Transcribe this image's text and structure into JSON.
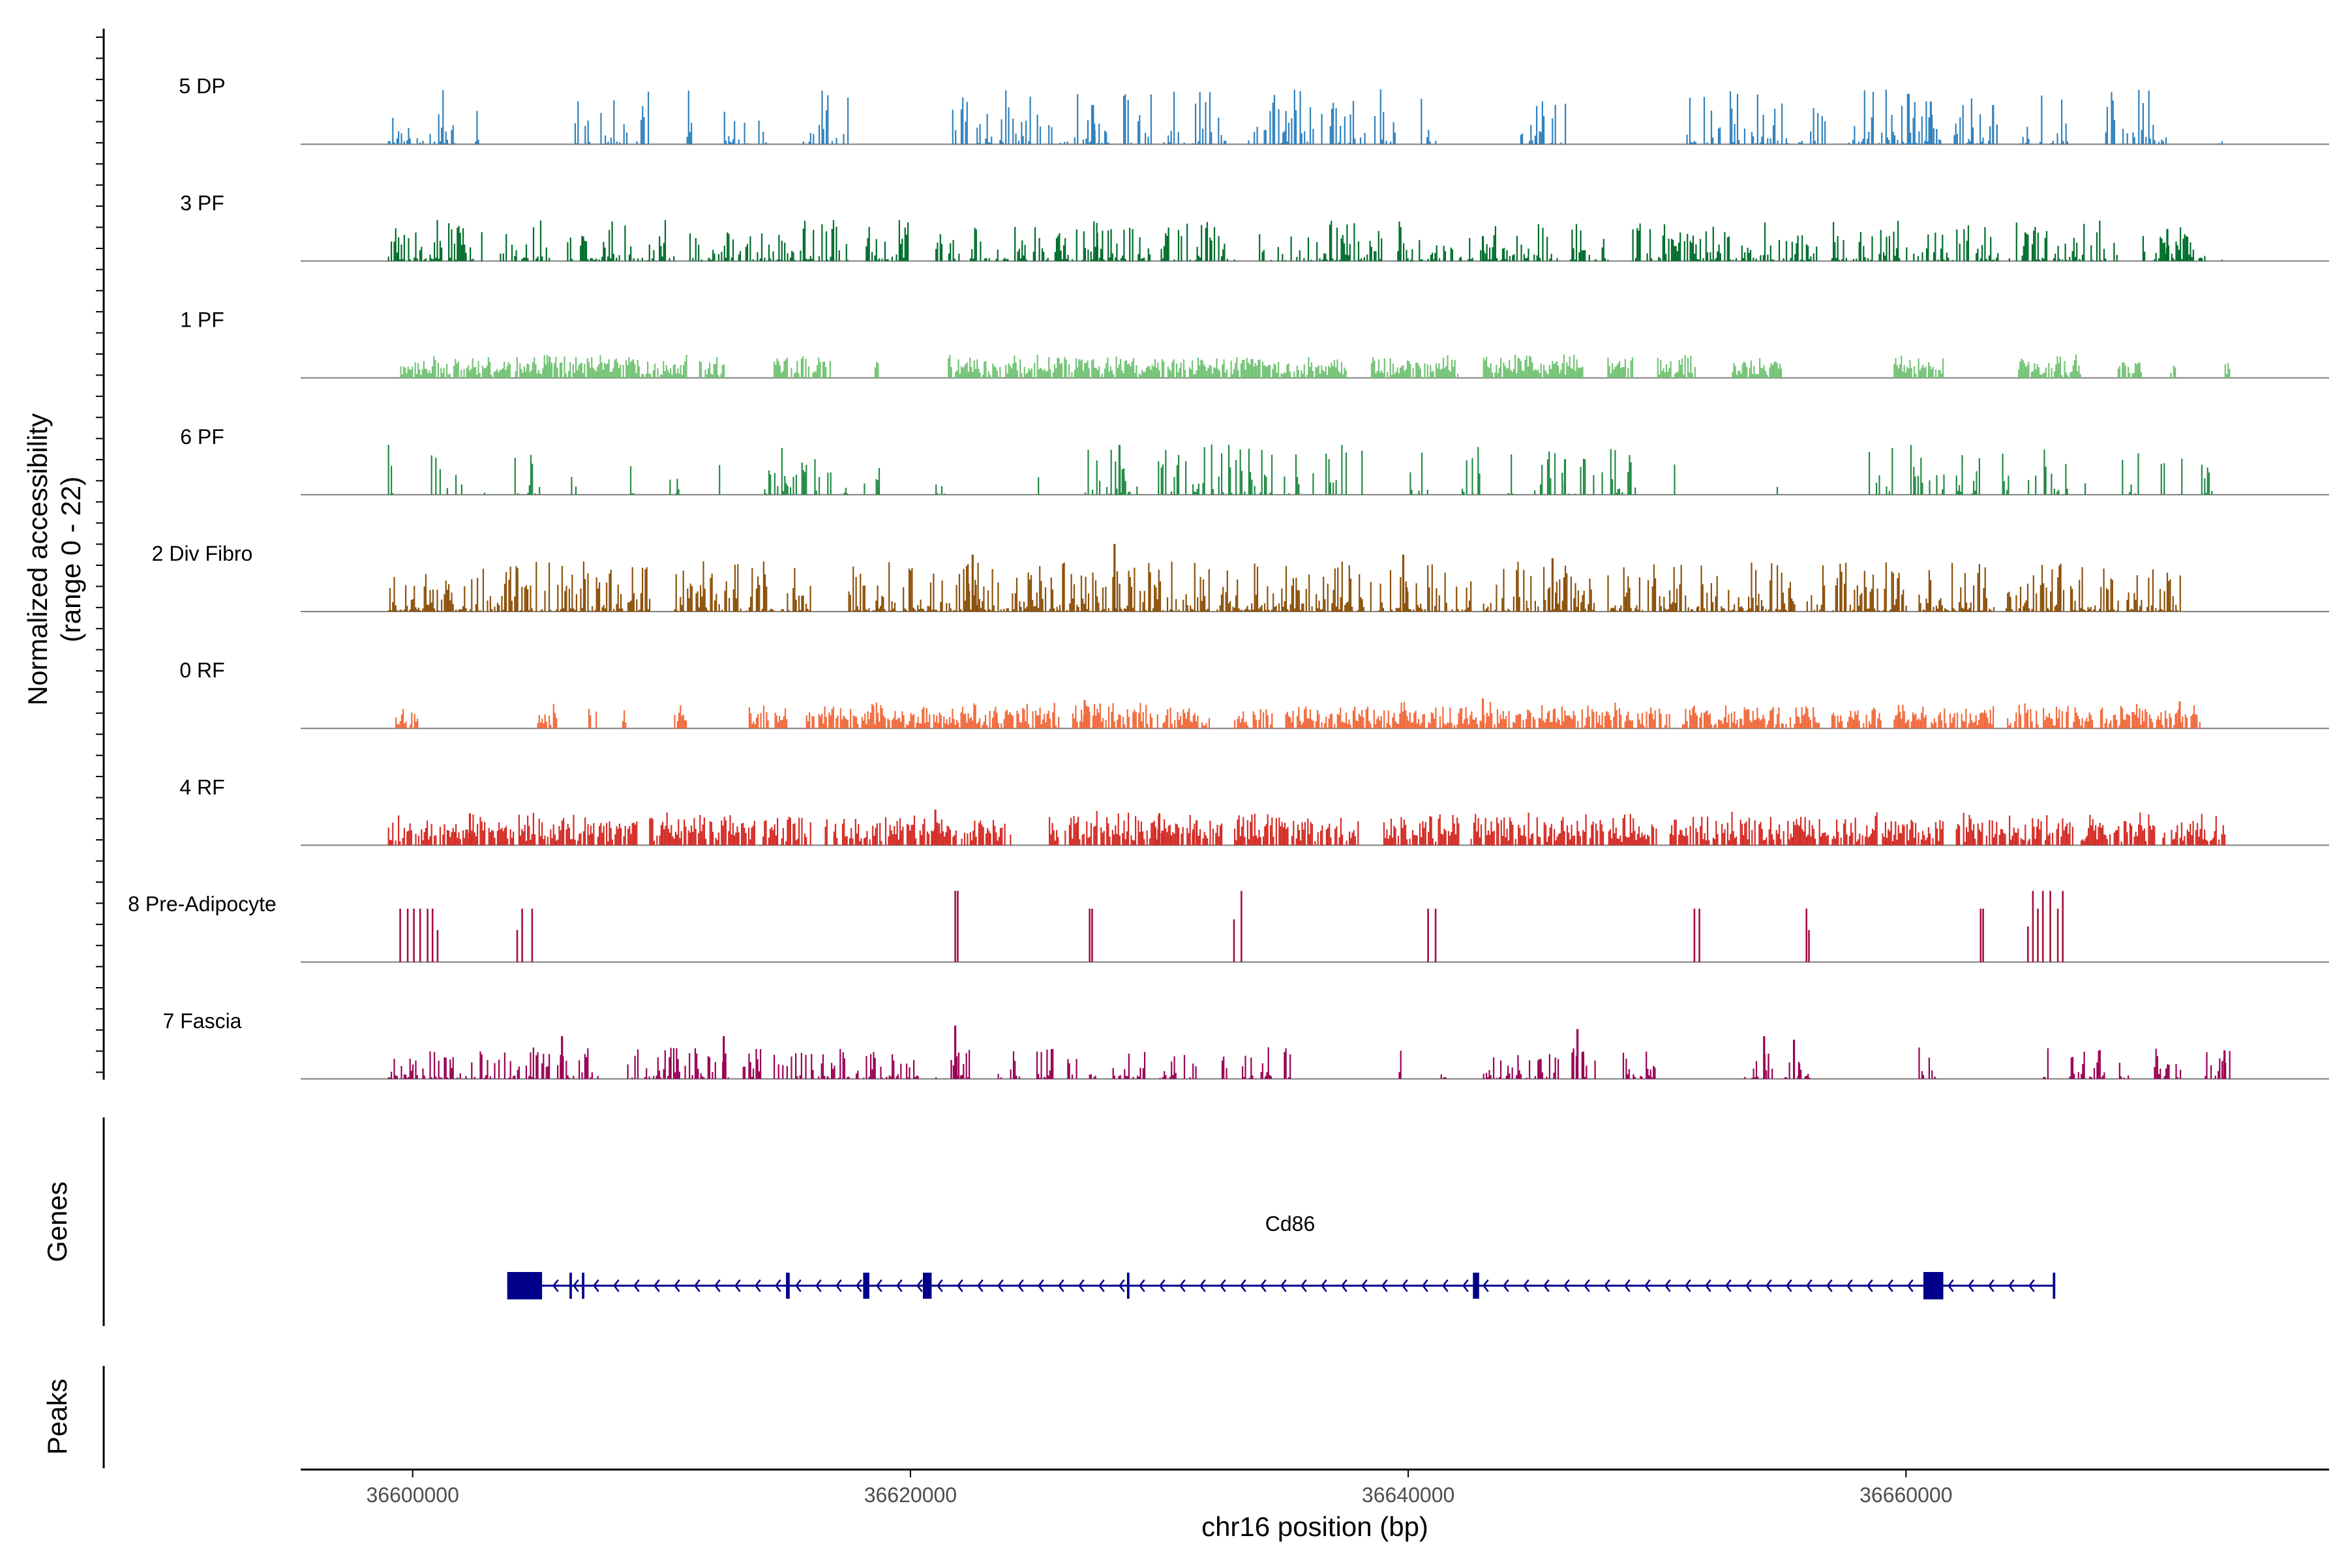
{
  "chart_data": {
    "type": "area",
    "figure": "coverage-plot",
    "y_axis_label_line1": "Normalized accessibility",
    "y_axis_label_line2": "(range 0 - 22)",
    "ylim": [
      0,
      22
    ],
    "xlim": [
      36595500,
      36677000
    ],
    "xlabel": "chr16 position (bp)",
    "x_ticks": [
      36600000,
      36620000,
      36640000,
      36660000
    ],
    "x_tick_labels": [
      "36600000",
      "36620000",
      "36640000",
      "36660000"
    ],
    "tracks": [
      {
        "name": "5 DP",
        "color": "#3182BD",
        "style": "spiky",
        "density": 0.45,
        "amp": 0.6,
        "seed": 11,
        "regions": [
          [
            36599000,
            36601800
          ],
          [
            36602500,
            36602900
          ],
          [
            36606500,
            36609500
          ],
          [
            36611000,
            36611300
          ],
          [
            36612500,
            36614200
          ],
          [
            36615500,
            36617500
          ],
          [
            36621500,
            36628000
          ],
          [
            36628200,
            36633000
          ],
          [
            36633500,
            36639500
          ],
          [
            36640500,
            36641500
          ],
          [
            36644500,
            36646500
          ],
          [
            36651000,
            36652500
          ],
          [
            36652800,
            36657000
          ],
          [
            36657500,
            36661500
          ],
          [
            36661800,
            36663500
          ],
          [
            36664500,
            36666500
          ],
          [
            36668000,
            36670500
          ],
          [
            36672500,
            36672900
          ]
        ],
        "peaks": [
          [
            36627300,
            0.55
          ],
          [
            36661000,
            0.6
          ],
          [
            36663500,
            0.55
          ]
        ]
      },
      {
        "name": "3 PF",
        "color": "#006D2C",
        "style": "spiky",
        "density": 0.55,
        "amp": 0.45,
        "seed": 23,
        "regions": [
          [
            36599000,
            36602800
          ],
          [
            36603500,
            36605500
          ],
          [
            36606200,
            36610500
          ],
          [
            36611000,
            36617500
          ],
          [
            36618200,
            36620000
          ],
          [
            36621000,
            36633000
          ],
          [
            36634000,
            36639000
          ],
          [
            36639500,
            36646000
          ],
          [
            36646500,
            36648000
          ],
          [
            36649000,
            36656500
          ],
          [
            36657000,
            36662500
          ],
          [
            36662800,
            36668500
          ],
          [
            36669500,
            36672000
          ],
          [
            36672500,
            36672900
          ]
        ],
        "peaks": [
          [
            36627500,
            0.4
          ],
          [
            36643000,
            0.35
          ],
          [
            36670500,
            0.45
          ]
        ]
      },
      {
        "name": "1 PF",
        "color": "#74C476",
        "style": "dense",
        "density": 0.85,
        "amp": 0.28,
        "seed": 37,
        "regions": [
          [
            36599500,
            36611000
          ],
          [
            36611500,
            36612500
          ],
          [
            36614500,
            36616800
          ],
          [
            36618500,
            36618700
          ],
          [
            36621500,
            36637500
          ],
          [
            36638500,
            36642000
          ],
          [
            36643000,
            36647000
          ],
          [
            36648000,
            36649000
          ],
          [
            36650000,
            36651500
          ],
          [
            36653000,
            36655000
          ],
          [
            36659500,
            36661500
          ],
          [
            36664500,
            36667000
          ],
          [
            36668500,
            36669500
          ],
          [
            36670500,
            36670800
          ],
          [
            36672800,
            36673000
          ]
        ],
        "peaks": [
          [
            36605500,
            0.3
          ]
        ]
      },
      {
        "name": "6 PF",
        "color": "#238B45",
        "style": "clustered",
        "density": 0.35,
        "amp": 0.55,
        "seed": 41,
        "regions": [
          [
            36599000,
            36599600
          ],
          [
            36600500,
            36602000
          ],
          [
            36602800,
            36603200
          ],
          [
            36603800,
            36605200
          ],
          [
            36606300,
            36606600
          ],
          [
            36608500,
            36609200
          ],
          [
            36610200,
            36610700
          ],
          [
            36612300,
            36612500
          ],
          [
            36614000,
            36616800
          ],
          [
            36617200,
            36618200
          ],
          [
            36618600,
            36618800
          ],
          [
            36621000,
            36621400
          ],
          [
            36625000,
            36625200
          ],
          [
            36627000,
            36634500
          ],
          [
            36635000,
            36637500
          ],
          [
            36638000,
            36638300
          ],
          [
            36640000,
            36641000
          ],
          [
            36641800,
            36643000
          ],
          [
            36644000,
            36644300
          ],
          [
            36645000,
            36649500
          ],
          [
            36650500,
            36650700
          ],
          [
            36654800,
            36655000
          ],
          [
            36658500,
            36661500
          ],
          [
            36662000,
            36663000
          ],
          [
            36663800,
            36666500
          ],
          [
            36667000,
            36667200
          ],
          [
            36668500,
            36669500
          ],
          [
            36670000,
            36670400
          ],
          [
            36671000,
            36671200
          ],
          [
            36671800,
            36672300
          ]
        ],
        "peaks": [
          [
            36628400,
            0.7
          ],
          [
            36646300,
            0.5
          ]
        ]
      },
      {
        "name": "2 Div Fibro",
        "color": "#8C510A",
        "style": "spiky",
        "density": 0.7,
        "amp": 0.55,
        "seed": 53,
        "regions": [
          [
            36599000,
            36609500
          ],
          [
            36610500,
            36614500
          ],
          [
            36614800,
            36616000
          ],
          [
            36617500,
            36632000
          ],
          [
            36632300,
            36638500
          ],
          [
            36638800,
            36642500
          ],
          [
            36643000,
            36647500
          ],
          [
            36648000,
            36655500
          ],
          [
            36656000,
            36660000
          ],
          [
            36660500,
            36663500
          ],
          [
            36664000,
            36668500
          ],
          [
            36668800,
            36671000
          ]
        ],
        "peaks": [
          [
            36622500,
            0.8
          ],
          [
            36628200,
            0.95
          ],
          [
            36639800,
            0.8
          ],
          [
            36645800,
            0.75
          ]
        ]
      },
      {
        "name": "0 RF",
        "color": "#F16B3E",
        "style": "dense",
        "density": 0.8,
        "amp": 0.3,
        "seed": 67,
        "regions": [
          [
            36599300,
            36600200
          ],
          [
            36605000,
            36605800
          ],
          [
            36607000,
            36607400
          ],
          [
            36608300,
            36608600
          ],
          [
            36610500,
            36611000
          ],
          [
            36613500,
            36615000
          ],
          [
            36615800,
            36616100
          ],
          [
            36616300,
            36626000
          ],
          [
            36626500,
            36632000
          ],
          [
            36633000,
            36634500
          ],
          [
            36635000,
            36638500
          ],
          [
            36638600,
            36649000
          ],
          [
            36649200,
            36650500
          ],
          [
            36651000,
            36656500
          ],
          [
            36657000,
            36659000
          ],
          [
            36659500,
            36663500
          ],
          [
            36664000,
            36667500
          ],
          [
            36667800,
            36671800
          ]
        ],
        "peaks": [
          [
            36627000,
            0.4
          ],
          [
            36643000,
            0.42
          ],
          [
            36671000,
            0.38
          ]
        ]
      },
      {
        "name": "4 RF",
        "color": "#D42D27",
        "style": "dense",
        "density": 0.75,
        "amp": 0.38,
        "seed": 79,
        "regions": [
          [
            36599000,
            36609000
          ],
          [
            36609500,
            36616000
          ],
          [
            36616500,
            36624000
          ],
          [
            36625500,
            36632500
          ],
          [
            36633000,
            36638000
          ],
          [
            36639000,
            36642000
          ],
          [
            36642500,
            36650000
          ],
          [
            36650500,
            36661500
          ],
          [
            36662000,
            36670000
          ],
          [
            36670300,
            36672800
          ]
        ],
        "peaks": [
          [
            36602300,
            0.45
          ],
          [
            36621000,
            0.5
          ],
          [
            36630000,
            0.45
          ],
          [
            36631500,
            0.35
          ]
        ]
      },
      {
        "name": "8 Pre-Adipocyte",
        "color": "#A50F38",
        "style": "bars",
        "density": 0.0,
        "amp": 0.0,
        "seed": 83,
        "regions": [],
        "peaks": [
          [
            36599500,
            0.75
          ],
          [
            36599800,
            0.75
          ],
          [
            36600050,
            0.75
          ],
          [
            36600300,
            0.75
          ],
          [
            36600600,
            0.75
          ],
          [
            36600800,
            0.75
          ],
          [
            36601000,
            0.45
          ],
          [
            36604200,
            0.45
          ],
          [
            36604400,
            0.75
          ],
          [
            36604800,
            0.75
          ],
          [
            36621800,
            1.0
          ],
          [
            36621900,
            1.0
          ],
          [
            36627200,
            0.75
          ],
          [
            36627300,
            0.75
          ],
          [
            36633000,
            0.6
          ],
          [
            36633300,
            1.0
          ],
          [
            36640800,
            0.75
          ],
          [
            36641100,
            0.75
          ],
          [
            36651500,
            0.75
          ],
          [
            36651700,
            0.75
          ],
          [
            36656000,
            0.75
          ],
          [
            36656100,
            0.45
          ],
          [
            36663000,
            0.75
          ],
          [
            36663100,
            0.75
          ],
          [
            36664900,
            0.5
          ],
          [
            36665100,
            1.0
          ],
          [
            36665300,
            0.75
          ],
          [
            36665500,
            1.0
          ],
          [
            36665800,
            1.0
          ],
          [
            36666100,
            0.75
          ],
          [
            36666300,
            1.0
          ]
        ]
      },
      {
        "name": "7 Fascia",
        "color": "#990055",
        "style": "spiky",
        "density": 0.5,
        "amp": 0.35,
        "seed": 97,
        "regions": [
          [
            36599000,
            36605500
          ],
          [
            36605800,
            36607500
          ],
          [
            36608500,
            36612800
          ],
          [
            36613200,
            36614000
          ],
          [
            36614500,
            36617500
          ],
          [
            36617800,
            36620500
          ],
          [
            36621000,
            36621500
          ],
          [
            36621700,
            36622500
          ],
          [
            36623500,
            36623800
          ],
          [
            36624000,
            36624400
          ],
          [
            36625000,
            36625800
          ],
          [
            36626300,
            36626700
          ],
          [
            36627000,
            36627500
          ],
          [
            36628000,
            36629500
          ],
          [
            36630000,
            36631500
          ],
          [
            36632500,
            36632800
          ],
          [
            36633200,
            36634500
          ],
          [
            36635000,
            36635300
          ],
          [
            36639500,
            36639700
          ],
          [
            36641300,
            36641500
          ],
          [
            36643000,
            36646000
          ],
          [
            36646500,
            36647500
          ],
          [
            36648500,
            36650000
          ],
          [
            36653500,
            36656200
          ],
          [
            36660500,
            36661300
          ],
          [
            36665500,
            36665800
          ],
          [
            36666500,
            36668000
          ],
          [
            36668500,
            36669000
          ],
          [
            36669500,
            36671000
          ],
          [
            36672000,
            36673000
          ]
        ],
        "peaks": [
          [
            36606000,
            0.6
          ],
          [
            36612500,
            0.6
          ],
          [
            36621800,
            0.75
          ],
          [
            36646800,
            0.7
          ],
          [
            36654300,
            0.6
          ],
          [
            36655500,
            0.55
          ],
          [
            36672800,
            0.4
          ]
        ]
      }
    ],
    "genes_label": "Genes",
    "peaks_label": "Peaks",
    "gene": {
      "name": "Cd86",
      "strand": "-",
      "start": 36603800,
      "end": 36666000,
      "exons": [
        [
          36603800,
          36605200
        ],
        [
          36606300,
          36606400
        ],
        [
          36606800,
          36606900
        ],
        [
          36615000,
          36615150
        ],
        [
          36618100,
          36618350
        ],
        [
          36620500,
          36620850
        ],
        [
          36628700,
          36628800
        ],
        [
          36642600,
          36642850
        ],
        [
          36660700,
          36661500
        ],
        [
          36665900,
          36666000
        ]
      ]
    }
  }
}
